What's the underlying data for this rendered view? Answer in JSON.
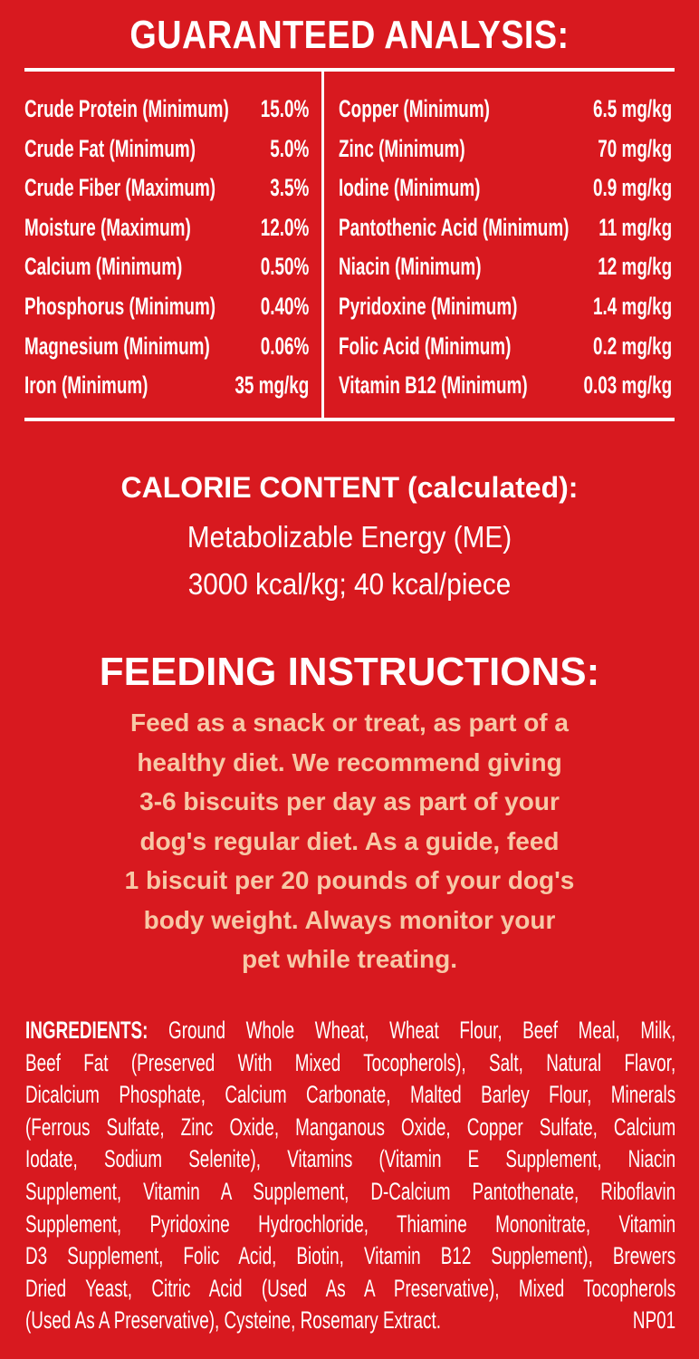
{
  "colors": {
    "background": "#d8191f",
    "text": "#ffffff",
    "feeding_text": "#f7c8a6"
  },
  "guaranteed_analysis": {
    "title": "GUARANTEED ANALYSIS:",
    "left": [
      {
        "label": "Crude Protein (Minimum)",
        "value": "15.0%"
      },
      {
        "label": "Crude Fat (Minimum)",
        "value": "5.0%"
      },
      {
        "label": "Crude Fiber (Maximum)",
        "value": "3.5%"
      },
      {
        "label": "Moisture (Maximum)",
        "value": "12.0%"
      },
      {
        "label": "Calcium (Minimum)",
        "value": "0.50%"
      },
      {
        "label": "Phosphorus (Minimum)",
        "value": "0.40%"
      },
      {
        "label": "Magnesium (Minimum)",
        "value": "0.06%"
      },
      {
        "label": "Iron (Minimum)",
        "value": "35 mg/kg"
      }
    ],
    "right": [
      {
        "label": "Copper (Minimum)",
        "value": "6.5 mg/kg"
      },
      {
        "label": "Zinc (Minimum)",
        "value": "70 mg/kg"
      },
      {
        "label": "Iodine (Minimum)",
        "value": "0.9 mg/kg"
      },
      {
        "label": "Pantothenic Acid (Minimum)",
        "value": "11 mg/kg"
      },
      {
        "label": "Niacin (Minimum)",
        "value": "12 mg/kg"
      },
      {
        "label": "Pyridoxine (Minimum)",
        "value": "1.4 mg/kg"
      },
      {
        "label": "Folic Acid (Minimum)",
        "value": "0.2 mg/kg"
      },
      {
        "label": "Vitamin B12 (Minimum)",
        "value": "0.03 mg/kg"
      }
    ]
  },
  "calorie": {
    "title": "CALORIE CONTENT (calculated):",
    "line1": "Metabolizable Energy (ME)",
    "line2": "3000 kcal/kg; 40 kcal/piece"
  },
  "feeding": {
    "title": "FEEDING INSTRUCTIONS:",
    "lines": [
      "Feed as a snack or treat, as part of a",
      "healthy diet. We recommend giving",
      "3-6 biscuits per day as part of your",
      "dog's regular diet. As a guide, feed",
      "1 biscuit per 20 pounds of your dog's",
      "body weight. Always monitor your",
      "pet while treating."
    ]
  },
  "ingredients": {
    "label": "INGREDIENTS:",
    "lines": [
      "Ground Whole Wheat, Wheat Flour, Beef Meal, Milk,",
      "Beef Fat (Preserved With Mixed Tocopherols), Salt, Natural Flavor,",
      "Dicalcium Phosphate, Calcium Carbonate, Malted Barley Flour, Minerals",
      "(Ferrous Sulfate, Zinc Oxide, Manganous Oxide, Copper Sulfate, Calcium",
      "Iodate, Sodium Selenite), Vitamins (Vitamin E Supplement, Niacin",
      "Supplement, Vitamin A Supplement, D-Calcium Pantothenate, Riboflavin",
      "Supplement, Pyridoxine Hydrochloride, Thiamine Mononitrate, Vitamin",
      "D3 Supplement, Folic Acid, Biotin, Vitamin B12 Supplement), Brewers",
      "Dried Yeast, Citric Acid (Used As A Preservative), Mixed Tocopherols",
      "(Used As A Preservative), Cysteine, Rosemary Extract."
    ],
    "code": "NP01"
  }
}
